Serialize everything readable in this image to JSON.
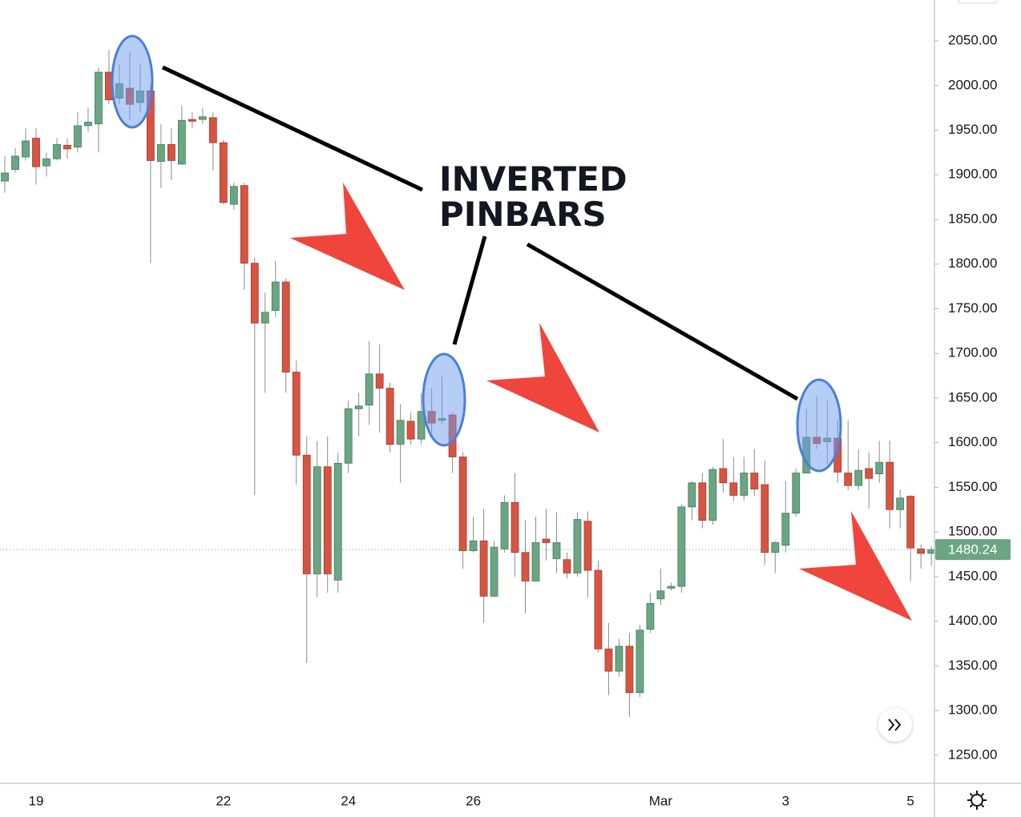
{
  "chart_data": {
    "type": "candlestick",
    "categories": [
      null,
      null,
      null,
      "19",
      null,
      null,
      null,
      null,
      null,
      null,
      null,
      null,
      null,
      null,
      null,
      null,
      null,
      null,
      null,
      null,
      null,
      "22",
      null,
      null,
      null,
      null,
      null,
      null,
      null,
      null,
      null,
      null,
      null,
      "24",
      null,
      null,
      null,
      null,
      null,
      null,
      null,
      null,
      null,
      null,
      null,
      "26",
      null,
      null,
      null,
      null,
      null,
      null,
      null,
      null,
      null,
      null,
      null,
      null,
      null,
      null,
      null,
      null,
      null,
      "Mar",
      null,
      null,
      null,
      null,
      null,
      null,
      null,
      null,
      null,
      null,
      null,
      "3",
      null,
      null,
      null,
      null,
      null,
      null,
      null,
      null,
      null,
      null,
      null,
      "5",
      null,
      null
    ],
    "open": [
      1893,
      1906,
      1920,
      1941,
      1910,
      1918,
      1933,
      1931,
      1955,
      1957,
      2015,
      1986,
      1997,
      1981,
      1994,
      1915,
      1934,
      1912,
      1962,
      1962,
      1964,
      1936,
      1867,
      1888,
      1801,
      1734,
      1748,
      1780,
      1679,
      1586,
      1453,
      1573,
      1446,
      1577,
      1638,
      1642,
      1677,
      1661,
      1598,
      1624,
      1604,
      1635,
      1625,
      1631,
      1584,
      1479,
      1490,
      1428,
      1481,
      1533,
      1477,
      1445,
      1492,
      1470,
      1469,
      1454,
      1512,
      1457,
      1369,
      1344,
      1372,
      1320,
      1391,
      1425,
      1437,
      1439,
      1528,
      1555,
      1513,
      1571,
      1555,
      1541,
      1566,
      1553,
      1477,
      1485,
      1521,
      1566,
      1606,
      1601,
      1605,
      1566,
      1552,
      1571,
      1565,
      1578,
      1525,
      1540,
      1481,
      1476
    ],
    "high": [
      1921,
      1930,
      1952,
      1952,
      1925,
      1941,
      1941,
      1970,
      1975,
      2020,
      2040,
      2024,
      2037,
      2024,
      2002,
      1957,
      1952,
      1977,
      1970,
      1975,
      1970,
      1939,
      1891,
      1891,
      1807,
      1768,
      1804,
      1784,
      1692,
      1607,
      1602,
      1607,
      1589,
      1647,
      1656,
      1714,
      1710,
      1667,
      1643,
      1634,
      1656,
      1661,
      1674,
      1634,
      1589,
      1517,
      1526,
      1490,
      1541,
      1566,
      1513,
      1517,
      1526,
      1522,
      1477,
      1522,
      1523,
      1468,
      1398,
      1380,
      1387,
      1396,
      1432,
      1459,
      1443,
      1531,
      1557,
      1566,
      1573,
      1604,
      1584,
      1584,
      1593,
      1580,
      1490,
      1557,
      1571,
      1638,
      1652,
      1647,
      1625,
      1625,
      1593,
      1589,
      1602,
      1602,
      1547,
      1541,
      1486,
      1484
    ],
    "low": [
      1880,
      1903,
      1916,
      1889,
      1898,
      1916,
      1918,
      1925,
      1948,
      1925,
      1979,
      1979,
      1961,
      1970,
      1801,
      1885,
      1894,
      1912,
      1952,
      1957,
      1905,
      1867,
      1861,
      1771,
      1541,
      1656,
      1741,
      1656,
      1553,
      1353,
      1427,
      1432,
      1432,
      1566,
      1607,
      1620,
      1611,
      1589,
      1555,
      1598,
      1598,
      1611,
      1620,
      1566,
      1459,
      1477,
      1398,
      1427,
      1477,
      1450,
      1409,
      1445,
      1468,
      1454,
      1448,
      1450,
      1427,
      1365,
      1317,
      1338,
      1293,
      1315,
      1387,
      1418,
      1434,
      1432,
      1513,
      1504,
      1508,
      1544,
      1535,
      1535,
      1540,
      1463,
      1454,
      1477,
      1517,
      1566,
      1593,
      1575,
      1555,
      1547,
      1547,
      1526,
      1555,
      1504,
      1504,
      1445,
      1459,
      1462
    ],
    "close": [
      1902,
      1921,
      1938,
      1909,
      1918,
      1934,
      1929,
      1955,
      1959,
      2015,
      1984,
      2002,
      1979,
      1994,
      1916,
      1934,
      1916,
      1961,
      1960,
      1965,
      1936,
      1869,
      1887,
      1801,
      1734,
      1746,
      1780,
      1679,
      1586,
      1453,
      1573,
      1453,
      1577,
      1638,
      1641,
      1677,
      1661,
      1598,
      1625,
      1604,
      1635,
      1622,
      1627,
      1584,
      1479,
      1490,
      1428,
      1483,
      1533,
      1477,
      1445,
      1488,
      1488,
      1488,
      1454,
      1514,
      1457,
      1369,
      1344,
      1372,
      1320,
      1390,
      1420,
      1434,
      1439,
      1528,
      1555,
      1513,
      1570,
      1555,
      1541,
      1566,
      1548,
      1477,
      1488,
      1521,
      1566,
      1606,
      1599,
      1605,
      1567,
      1552,
      1569,
      1560,
      1578,
      1525,
      1538,
      1482,
      1476,
      1480.24
    ],
    "up_color": "#6ba583",
    "down_color": "#d75442",
    "wick_color": "#8c8c8c",
    "ylim": [
      1218.4,
      2095.8
    ],
    "yticks": [
      {
        "value": 1250,
        "label": "1250.00"
      },
      {
        "value": 1300,
        "label": "1300.00"
      },
      {
        "value": 1350,
        "label": "1350.00"
      },
      {
        "value": 1400,
        "label": "1400.00"
      },
      {
        "value": 1450,
        "label": "1450.00"
      },
      {
        "value": 1500,
        "label": "1500.00"
      },
      {
        "value": 1550,
        "label": "1550.00"
      },
      {
        "value": 1600,
        "label": "1600.00"
      },
      {
        "value": 1650,
        "label": "1650.00"
      },
      {
        "value": 1700,
        "label": "1700.00"
      },
      {
        "value": 1750,
        "label": "1750.00"
      },
      {
        "value": 1800,
        "label": "1800.00"
      },
      {
        "value": 1850,
        "label": "1850.00"
      },
      {
        "value": 1900,
        "label": "1900.00"
      },
      {
        "value": 1950,
        "label": "1950.00"
      },
      {
        "value": 2000,
        "label": "2000.00"
      },
      {
        "value": 2050,
        "label": "2050.00"
      }
    ],
    "last_price": 1480.24,
    "last_price_color": "#6ba583",
    "annotation": [
      "INVERTED",
      "PINBARS"
    ]
  }
}
